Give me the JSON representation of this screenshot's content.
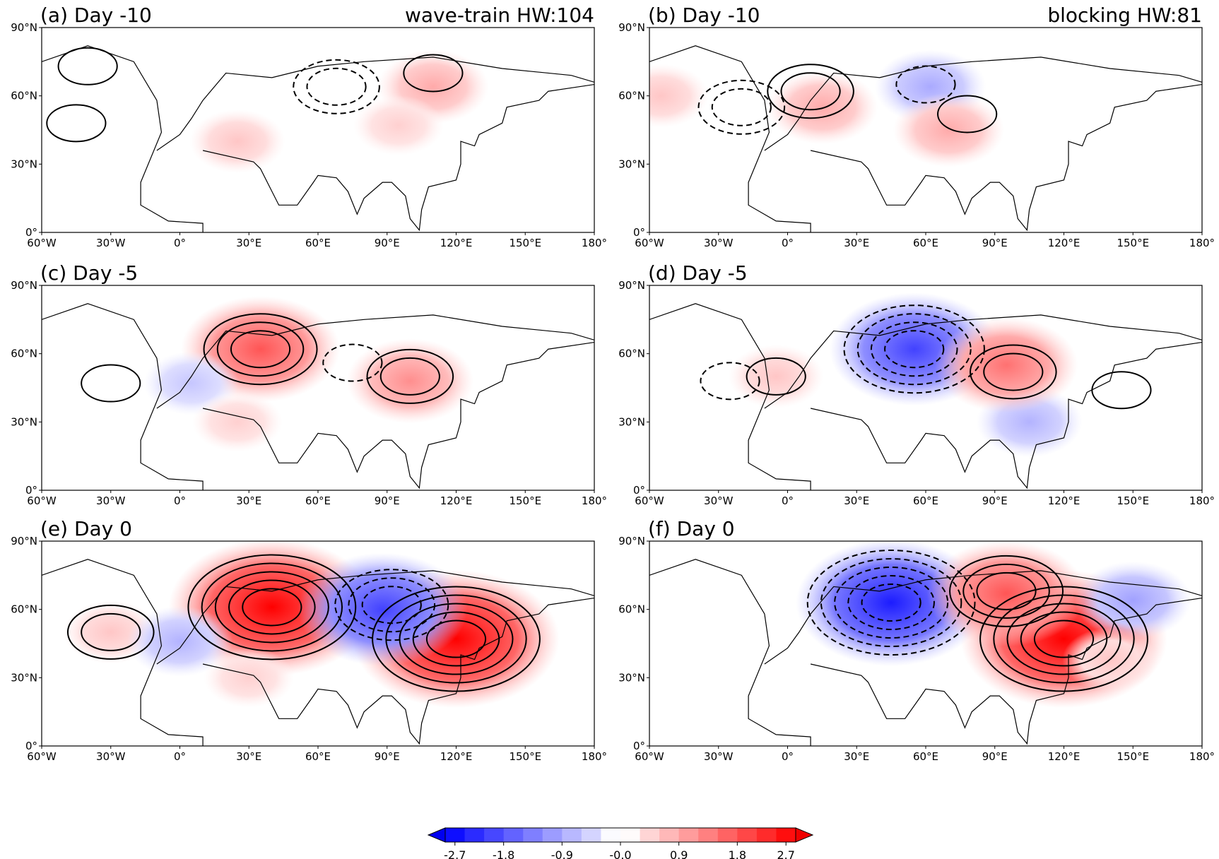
{
  "chart_data": {
    "type": "heatmap",
    "lon_range": [
      -60,
      180
    ],
    "lat_range": [
      0,
      90
    ],
    "lon_ticks": [
      "60°W",
      "30°W",
      "0°",
      "30°E",
      "60°E",
      "90°E",
      "120°E",
      "150°E",
      "180°"
    ],
    "lat_ticks": [
      "0°",
      "30°N",
      "60°N",
      "90°N"
    ],
    "panels": [
      {
        "title": "(a) Day -10",
        "subtitle": "wave-train HW:104",
        "shading": [
          {
            "lon": 110,
            "lat": 64,
            "value": 0.9
          },
          {
            "lon": 25,
            "lat": 40,
            "value": 0.6
          },
          {
            "lon": 95,
            "lat": 47,
            "value": 0.5
          }
        ],
        "contours": [
          {
            "lon": 110,
            "lat": 70,
            "style": "solid",
            "levels": 1
          },
          {
            "lon": 68,
            "lat": 64,
            "style": "dashed",
            "levels": 2
          },
          {
            "lon": -45,
            "lat": 48,
            "style": "solid",
            "levels": 1
          },
          {
            "lon": -40,
            "lat": 73,
            "style": "solid",
            "levels": 1
          }
        ]
      },
      {
        "title": "(b) Day -10",
        "subtitle": "blocking HW:81",
        "shading": [
          {
            "lon": 62,
            "lat": 64,
            "value": -0.9
          },
          {
            "lon": 70,
            "lat": 45,
            "value": 0.9
          },
          {
            "lon": 15,
            "lat": 55,
            "value": 0.9
          },
          {
            "lon": -55,
            "lat": 60,
            "value": 0.6
          }
        ],
        "contours": [
          {
            "lon": 78,
            "lat": 52,
            "style": "solid",
            "levels": 1
          },
          {
            "lon": -20,
            "lat": 55,
            "style": "dashed",
            "levels": 2
          },
          {
            "lon": 10,
            "lat": 62,
            "style": "solid",
            "levels": 2
          },
          {
            "lon": 60,
            "lat": 65,
            "style": "dashed",
            "levels": 1
          }
        ]
      },
      {
        "title": "(c) Day -5",
        "subtitle": "",
        "shading": [
          {
            "lon": 35,
            "lat": 62,
            "value": 1.8
          },
          {
            "lon": 100,
            "lat": 48,
            "value": 1.2
          },
          {
            "lon": 5,
            "lat": 47,
            "value": -0.6
          },
          {
            "lon": 25,
            "lat": 30,
            "value": 0.5
          }
        ],
        "contours": [
          {
            "lon": 35,
            "lat": 62,
            "style": "solid",
            "levels": 3
          },
          {
            "lon": 100,
            "lat": 50,
            "style": "solid",
            "levels": 2
          },
          {
            "lon": -30,
            "lat": 47,
            "style": "solid",
            "levels": 1
          },
          {
            "lon": 75,
            "lat": 56,
            "style": "dashed",
            "levels": 1
          }
        ]
      },
      {
        "title": "(d) Day -5",
        "subtitle": "",
        "shading": [
          {
            "lon": 55,
            "lat": 62,
            "value": -2.0
          },
          {
            "lon": 105,
            "lat": 30,
            "value": -0.8
          },
          {
            "lon": 95,
            "lat": 55,
            "value": 1.5
          },
          {
            "lon": -5,
            "lat": 50,
            "value": 0.6
          }
        ],
        "contours": [
          {
            "lon": 55,
            "lat": 62,
            "style": "dashed",
            "levels": 4
          },
          {
            "lon": 98,
            "lat": 52,
            "style": "solid",
            "levels": 2
          },
          {
            "lon": -25,
            "lat": 48,
            "style": "dashed",
            "levels": 1
          },
          {
            "lon": -5,
            "lat": 50,
            "style": "solid",
            "levels": 1
          },
          {
            "lon": 145,
            "lat": 44,
            "style": "solid",
            "levels": 1
          }
        ]
      },
      {
        "title": "(e) Day 0",
        "subtitle": "",
        "shading": [
          {
            "lon": 40,
            "lat": 61,
            "value": 2.7
          },
          {
            "lon": 120,
            "lat": 47,
            "value": 2.7
          },
          {
            "lon": -30,
            "lat": 50,
            "value": 0.6
          },
          {
            "lon": 88,
            "lat": 60,
            "value": -2.0
          },
          {
            "lon": 0,
            "lat": 46,
            "value": -0.8
          },
          {
            "lon": 30,
            "lat": 30,
            "value": 0.5
          }
        ],
        "contours": [
          {
            "lon": 40,
            "lat": 61,
            "style": "solid",
            "levels": 5
          },
          {
            "lon": 120,
            "lat": 47,
            "style": "solid",
            "levels": 5
          },
          {
            "lon": 92,
            "lat": 62,
            "style": "dashed",
            "levels": 3
          },
          {
            "lon": -30,
            "lat": 50,
            "style": "solid",
            "levels": 2
          }
        ]
      },
      {
        "title": "(f) Day 0",
        "subtitle": "",
        "shading": [
          {
            "lon": 45,
            "lat": 63,
            "value": -2.4
          },
          {
            "lon": 120,
            "lat": 47,
            "value": 2.7
          },
          {
            "lon": 95,
            "lat": 67,
            "value": 1.8
          },
          {
            "lon": 150,
            "lat": 64,
            "value": -1.0
          },
          {
            "lon": 140,
            "lat": 38,
            "value": 0.6
          }
        ],
        "contours": [
          {
            "lon": 45,
            "lat": 63,
            "style": "dashed",
            "levels": 5
          },
          {
            "lon": 120,
            "lat": 47,
            "style": "solid",
            "levels": 5
          },
          {
            "lon": 95,
            "lat": 68,
            "style": "solid",
            "levels": 3
          }
        ]
      }
    ],
    "colorbar": {
      "min": -2.7,
      "max": 2.7,
      "step": 0.3,
      "extend": "both",
      "tick_labels": [
        "-2.7",
        "-1.8",
        "-0.9",
        "-0.0",
        "0.9",
        "1.8",
        "2.7"
      ]
    }
  }
}
